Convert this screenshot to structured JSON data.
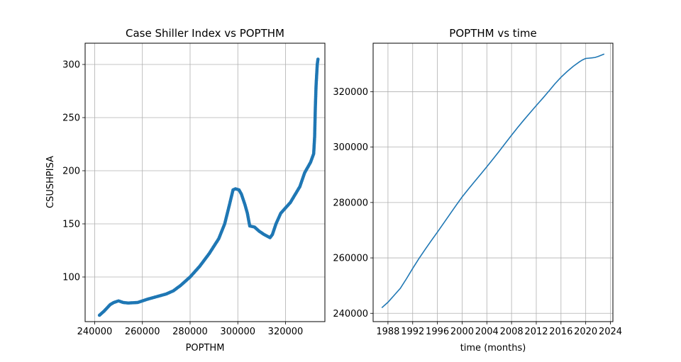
{
  "chart_data": [
    {
      "type": "scatter",
      "title": "Case Shiller Index vs POPTHM",
      "xlabel": "POPTHM",
      "ylabel": "CSUSHPISA",
      "xlim": [
        236000,
        336500
      ],
      "ylim": [
        58,
        320
      ],
      "xticks": [
        240000,
        260000,
        280000,
        300000,
        320000
      ],
      "xtick_labels": [
        "240000",
        "260000",
        "280000",
        "300000",
        "320000"
      ],
      "yticks": [
        100,
        150,
        200,
        250,
        300
      ],
      "ytick_labels": [
        "100",
        "150",
        "200",
        "250",
        "300"
      ],
      "grid": true,
      "color": "#1f77b4",
      "anchors": [
        [
          242000,
          64
        ],
        [
          244000,
          68
        ],
        [
          246500,
          74
        ],
        [
          248000,
          76
        ],
        [
          250000,
          77.5
        ],
        [
          252000,
          76
        ],
        [
          254000,
          75.5
        ],
        [
          258000,
          76
        ],
        [
          262000,
          79
        ],
        [
          266000,
          81.5
        ],
        [
          270000,
          84
        ],
        [
          273000,
          87
        ],
        [
          276000,
          92
        ],
        [
          280000,
          100
        ],
        [
          284000,
          110
        ],
        [
          288000,
          122
        ],
        [
          292000,
          136
        ],
        [
          294500,
          150
        ],
        [
          296500,
          168
        ],
        [
          298000,
          182
        ],
        [
          299000,
          183
        ],
        [
          300500,
          182
        ],
        [
          301500,
          178
        ],
        [
          303000,
          168
        ],
        [
          304000,
          160
        ],
        [
          305000,
          148
        ],
        [
          307000,
          147
        ],
        [
          309000,
          143
        ],
        [
          311000,
          140
        ],
        [
          313500,
          137
        ],
        [
          314500,
          140
        ],
        [
          316000,
          150
        ],
        [
          318000,
          160
        ],
        [
          322000,
          170
        ],
        [
          326000,
          185
        ],
        [
          328000,
          198
        ],
        [
          330500,
          208
        ],
        [
          331800,
          216
        ],
        [
          332200,
          232
        ],
        [
          332500,
          260
        ],
        [
          332800,
          280
        ],
        [
          333300,
          300
        ],
        [
          333600,
          305
        ]
      ]
    },
    {
      "type": "line",
      "title": "POPTHM vs time",
      "xlabel": "time (months)",
      "ylabel": "",
      "xlim": [
        1985.6,
        2024.4
      ],
      "ylim": [
        237000,
        337500
      ],
      "xticks": [
        1988,
        1992,
        1996,
        2000,
        2004,
        2008,
        2012,
        2016,
        2020,
        2024
      ],
      "xtick_labels": [
        "1988",
        "1992",
        "1996",
        "2000",
        "2004",
        "2008",
        "2012",
        "2016",
        "2020",
        "2024"
      ],
      "yticks": [
        240000,
        260000,
        280000,
        300000,
        320000
      ],
      "ytick_labels": [
        "240000",
        "260000",
        "280000",
        "300000",
        "320000"
      ],
      "grid": true,
      "color": "#1f77b4",
      "x": [
        1987.0,
        1988.0,
        1989.0,
        1990.0,
        1991.0,
        1992.0,
        1993.0,
        1994.0,
        1995.0,
        1996.0,
        1997.0,
        1998.0,
        1999.0,
        2000.0,
        2001.0,
        2002.0,
        2003.0,
        2004.0,
        2005.0,
        2006.0,
        2007.0,
        2008.0,
        2009.0,
        2010.0,
        2011.0,
        2012.0,
        2013.0,
        2014.0,
        2015.0,
        2016.0,
        2017.0,
        2018.0,
        2019.0,
        2019.5,
        2020.0,
        2020.5,
        2021.0,
        2021.5,
        2022.0,
        2023.0
      ],
      "y": [
        242000,
        244000,
        246500,
        249000,
        252500,
        256200,
        259700,
        263000,
        266200,
        269300,
        272500,
        275700,
        278900,
        282000,
        284800,
        287500,
        290200,
        292900,
        295700,
        298500,
        301400,
        304300,
        307100,
        309800,
        312400,
        315000,
        317500,
        320100,
        322800,
        325200,
        327300,
        329200,
        330800,
        331500,
        332000,
        332100,
        332200,
        332350,
        332700,
        333600
      ]
    }
  ]
}
